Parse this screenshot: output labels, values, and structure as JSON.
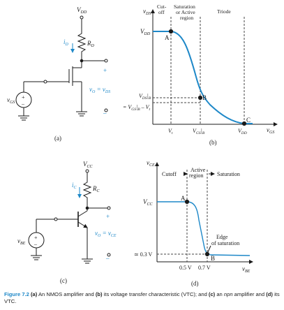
{
  "caption": {
    "label": "Figure 7.2",
    "p1": "(a)",
    "t1": " An NMOS amplifier and ",
    "p2": "(b)",
    "t2": " its voltage transfer characteristic (VTC); and ",
    "p3": "(c)",
    "t3": " an ",
    "em": "npn",
    "t4": " amplifier and ",
    "p5": "(d)",
    "t5": " its VTC."
  },
  "panel_a": {
    "sublabel": "(a)",
    "vdd": "V",
    "vdd_sub": "DD",
    "rd": "R",
    "rd_sub": "D",
    "id": "i",
    "id_sub": "D",
    "vgs": "v",
    "vgs_sub": "GS",
    "vo": "v",
    "vo_sub": "O",
    "vo_eq": " = v",
    "vo_eq_sub": "DS",
    "plus": "+",
    "minus": "–"
  },
  "panel_b": {
    "sublabel": "(b)",
    "y_axis": "v",
    "y_axis_sub": "DS",
    "x_axis": "v",
    "x_axis_sub": "GS",
    "region_cutoff_1": "Cut-",
    "region_cutoff_2": "off",
    "region_sat_1": "Saturation",
    "region_sat_2": "or Active",
    "region_sat_3": "region",
    "region_triode": "Triode",
    "y_vdd": "V",
    "y_vdd_sub": "DD",
    "y_vdsb": "V",
    "y_vdsb_sub": "DS",
    "y_vdsb_tail": "|",
    "y_vdsb_tail_sub": "B",
    "y_eq": "= V",
    "y_eq_sub": "GS",
    "y_eq_tail": "|",
    "y_eq_tail_sub": "B",
    "y_eq_end": " – V",
    "y_eq_end_sub": "t",
    "x_vt": "V",
    "x_vt_sub": "t",
    "x_vgsb": "V",
    "x_vgsb_sub": "GS",
    "x_vgsb_tail": "|",
    "x_vgsb_tail_sub": "B",
    "x_vdd": "V",
    "x_vdd_sub": "DD",
    "point_a": "A",
    "point_b": "B",
    "point_c": "C"
  },
  "panel_c": {
    "sublabel": "(c)",
    "vcc": "V",
    "vcc_sub": "CC",
    "rc": "R",
    "rc_sub": "C",
    "ic": "i",
    "ic_sub": "C",
    "vbe": "v",
    "vbe_sub": "BE",
    "vo": "v",
    "vo_sub": "O",
    "vo_eq": " = v",
    "vo_eq_sub": "CE",
    "plus": "+",
    "minus": "–"
  },
  "panel_d": {
    "sublabel": "(d)",
    "y_axis": "v",
    "y_axis_sub": "CE",
    "x_axis": "v",
    "x_axis_sub": "BE",
    "region_cutoff": "Cutoff",
    "region_active_1": "Active",
    "region_active_2": "region",
    "region_sat": "Saturation",
    "y_vcc": "V",
    "y_vcc_sub": "CC",
    "y_03": "≃ 0.3 V",
    "x_05": "0.5 V",
    "x_07": "0.7 V",
    "edge_1": "Edge",
    "edge_2": "of saturation",
    "point_a": "A",
    "point_b": "B"
  },
  "colors": {
    "blue": "#1e88c8",
    "ink": "#1a1a1a"
  }
}
